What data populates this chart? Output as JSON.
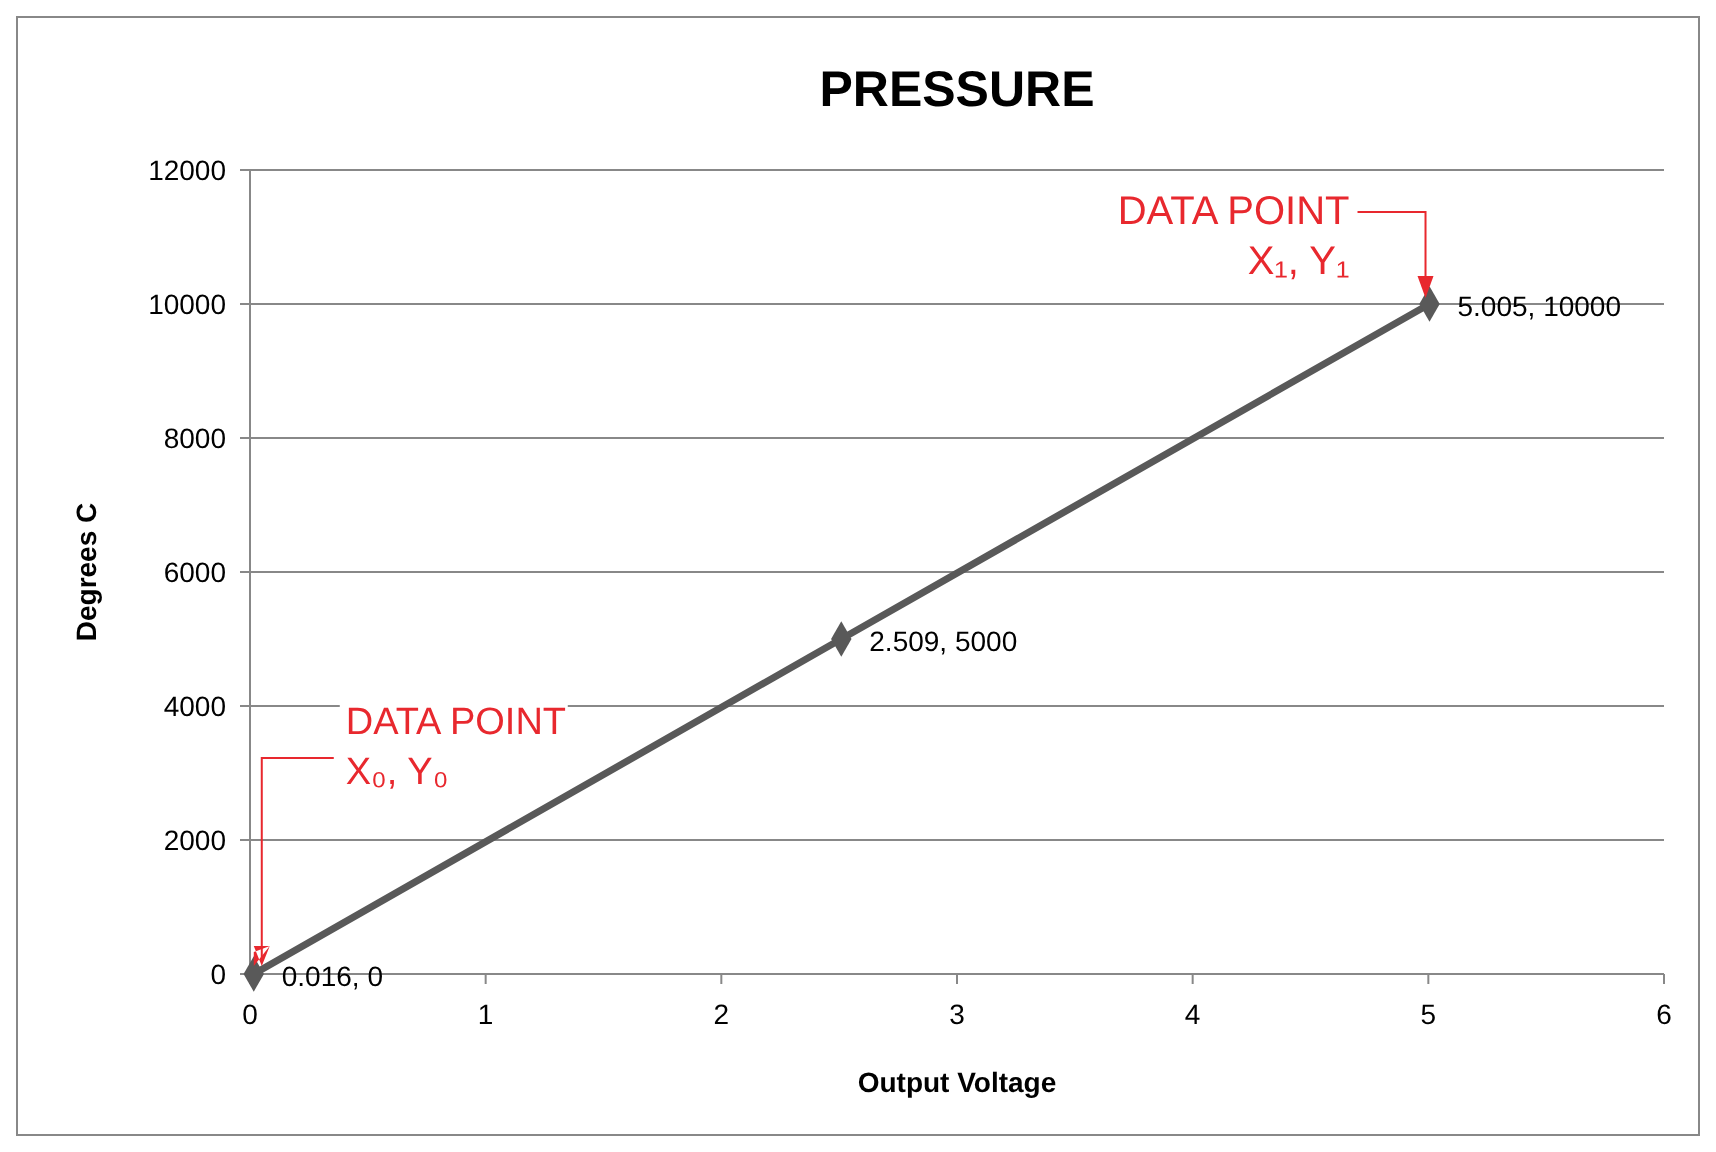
{
  "chart_data": {
    "type": "line",
    "title": "PRESSURE",
    "xlabel": "Output Voltage",
    "ylabel": "Degrees C",
    "x": [
      0.016,
      2.509,
      5.005
    ],
    "series": [
      {
        "color": "#595959",
        "values": [
          0,
          5000,
          10000
        ],
        "value_labels": [
          "0.016, 0",
          "2.509, 5000",
          "5.005, 10000"
        ]
      }
    ],
    "xlim": [
      0,
      6
    ],
    "xticks": [
      0,
      1,
      2,
      3,
      4,
      5,
      6
    ],
    "ylim": [
      0,
      12000
    ],
    "yticks": [
      0,
      2000,
      4000,
      6000,
      8000,
      10000,
      12000
    ],
    "grid": "y",
    "marker": "diamond",
    "line_style": "solid",
    "annotations": [
      {
        "text": "DATA POINT\nX₀, Y₀",
        "x": 0.016,
        "y": 0
      },
      {
        "text": "DATA POINT\nX₁, Y₁",
        "x": 5.005,
        "y": 10000
      }
    ]
  }
}
